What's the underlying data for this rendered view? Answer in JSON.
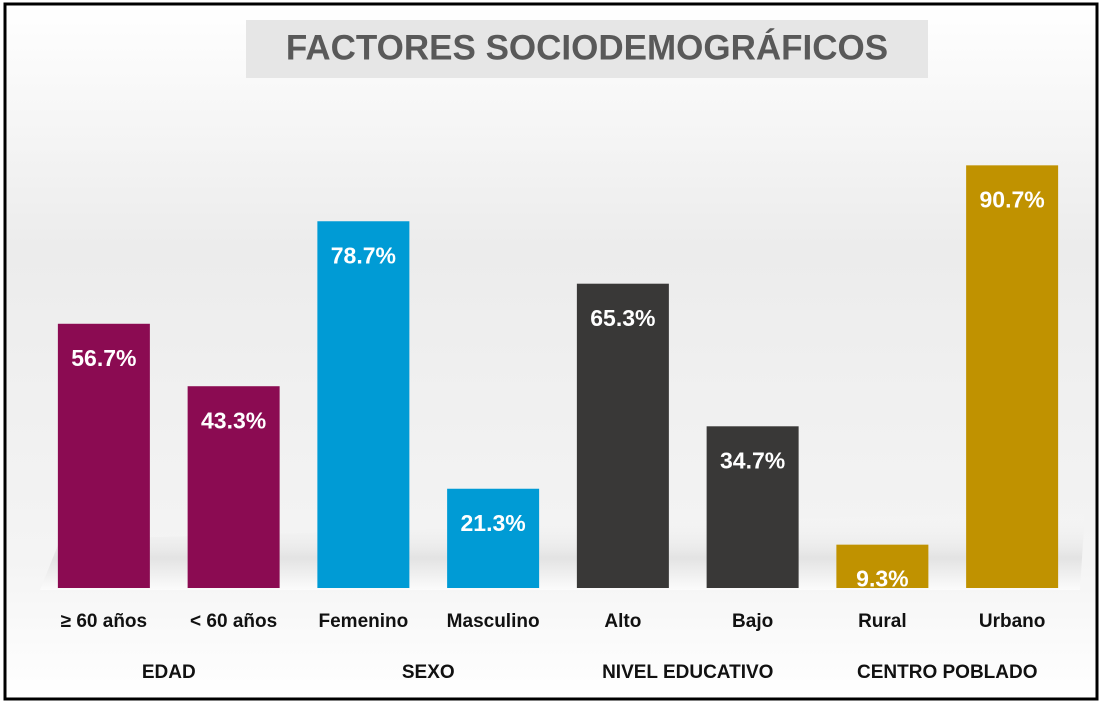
{
  "chart_data": {
    "type": "bar",
    "title": "FACTORES SOCIODEMOGRÁFICOS",
    "ylim": [
      0,
      100
    ],
    "groups": [
      {
        "name": "EDAD",
        "color": "#8b0b52",
        "categories": [
          "≥ 60 años",
          "< 60 años"
        ],
        "values": [
          56.7,
          43.3
        ],
        "value_labels": [
          "56.7%",
          "43.3%"
        ]
      },
      {
        "name": "SEXO",
        "color": "#009bd5",
        "categories": [
          "Femenino",
          "Masculino"
        ],
        "values": [
          78.7,
          21.3
        ],
        "value_labels": [
          "78.7%",
          "21.3%"
        ]
      },
      {
        "name": "NIVEL EDUCATIVO",
        "color": "#393837",
        "categories": [
          "Alto",
          "Bajo"
        ],
        "values": [
          65.3,
          34.7
        ],
        "value_labels": [
          "65.3%",
          "34.7%"
        ]
      },
      {
        "name": "CENTRO POBLADO",
        "color": "#c09200",
        "categories": [
          "Rural",
          "Urbano"
        ],
        "values": [
          9.3,
          90.7
        ],
        "value_labels": [
          "9.3%",
          "90.7%"
        ]
      }
    ]
  }
}
